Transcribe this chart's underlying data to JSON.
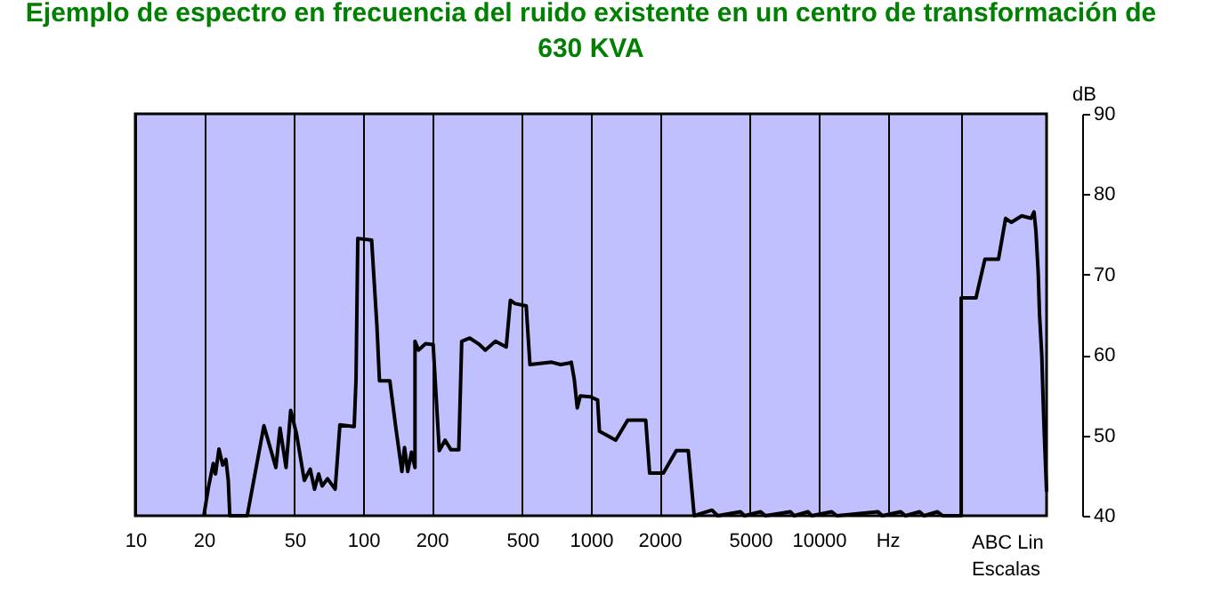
{
  "chart_data": {
    "type": "line",
    "title": "Ejemplo de espectro en frecuencia del ruido existente en un centro de transformación de 630 KVA",
    "ylabel": "dB",
    "x": [
      20,
      21,
      22,
      22.5,
      23.3,
      24.2,
      25,
      25.6,
      26,
      31,
      36.7,
      41.4,
      43.2,
      45.9,
      48.1,
      51,
      55.2,
      58.6,
      61.2,
      63.8,
      66.1,
      69.8,
      75.4,
      79.1,
      91.4,
      93.1,
      94.8,
      109,
      115,
      118,
      131,
      139,
      148,
      152,
      157,
      163,
      169,
      169,
      175,
      188,
      203,
      216,
      229,
      243,
      263,
      271,
      294,
      324,
      344,
      381,
      425,
      443,
      464,
      520,
      540,
      673,
      736,
      805,
      820,
      845,
      871,
      898,
      995,
      1070,
      1090,
      1285,
      1450,
      1740,
      1810,
      2080,
      2370,
      2675,
      2840,
      3400,
      3600,
      4530,
      4720,
      5560,
      5830,
      7500,
      7800,
      8980,
      9300,
      11400,
      12000,
      18200,
      19000,
      22900,
      24000,
      27700,
      29000,
      33200,
      35000,
      42200,
      42200,
      49000,
      53600,
      61500,
      66100,
      70100,
      77800,
      85500,
      88100,
      89800,
      91900,
      93100,
      95300,
      96400,
      97700,
      100000
    ],
    "series": [
      {
        "color": "#000000",
        "values": [
          40,
          43.7,
          46.5,
          45.2,
          48.3,
          46.3,
          47,
          44.4,
          40,
          40,
          51.2,
          46,
          50.9,
          46,
          53.1,
          50.2,
          44.4,
          45.8,
          43.3,
          45.2,
          43.7,
          44.6,
          43.3,
          51.3,
          51.1,
          57,
          74.5,
          74.3,
          63.6,
          56.8,
          56.8,
          51.1,
          45.5,
          48.5,
          45.5,
          47.9,
          46,
          61.7,
          60.6,
          61.4,
          61.3,
          48.1,
          49.4,
          48.2,
          48.2,
          61.7,
          62.1,
          61.3,
          60.6,
          61.7,
          61,
          66.8,
          66.4,
          66.1,
          58.8,
          59.1,
          58.8,
          59,
          59.1,
          57,
          53.4,
          54.9,
          54.8,
          54.4,
          50.5,
          49.4,
          51.9,
          51.9,
          45.3,
          45.3,
          48.1,
          48.1,
          40,
          40.7,
          40,
          40.5,
          40,
          40.5,
          40,
          40.5,
          40,
          40.5,
          40,
          40.5,
          40,
          40.5,
          40,
          40.5,
          40,
          40.5,
          40,
          40.5,
          40,
          40,
          67.1,
          67.1,
          71.9,
          71.9,
          77,
          76.5,
          77.3,
          77,
          77.8,
          75.4,
          70.2,
          65.1,
          59.9,
          55.1,
          50.3,
          43
        ]
      }
    ],
    "log": "x",
    "xlim": [
      10,
      100000
    ],
    "xticks": [
      10,
      20,
      50,
      100,
      200,
      500,
      1000,
      2000,
      5000,
      10000,
      {
        "value": 20000,
        "label": "Hz"
      },
      {
        "value": 42200,
        "label": null
      }
    ],
    "ylim": [
      40,
      90
    ],
    "yticks": [
      40,
      50,
      60,
      70,
      80,
      90
    ],
    "grid": "x",
    "annotations": [
      "ABC Lin",
      "Escalas"
    ]
  }
}
